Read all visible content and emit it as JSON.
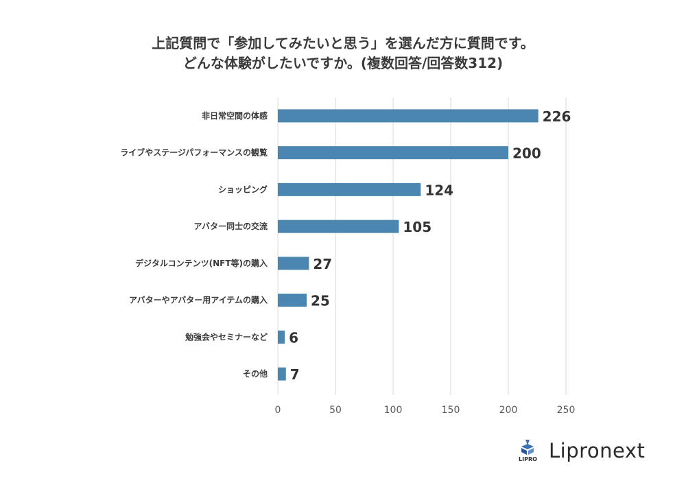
{
  "title_line1": "上記質問で「参加してみたいと思う」を選んだ方に質問です。",
  "title_line2": "どんな体験がしたいですか。(複数回答/回答数312)",
  "brand": {
    "name": "Lipronext",
    "mark_text": "LIPRO"
  },
  "colors": {
    "bar": "#4a86b0",
    "grid": "#d9d9d9",
    "axis_text": "#595959",
    "value_text": "#333333"
  },
  "chart_data": {
    "type": "bar",
    "orientation": "horizontal",
    "categories": [
      "非日常空間の体感",
      "ライブやステージパフォーマンスの観覧",
      "ショッピング",
      "アバター同士の交流",
      "デジタルコンテンツ(NFT等)の購入",
      "アバターやアバター用アイテムの購入",
      "勉強会やセミナーなど",
      "その他"
    ],
    "values": [
      226,
      200,
      124,
      105,
      27,
      25,
      6,
      7
    ],
    "xlim": [
      0,
      250
    ],
    "xticks": [
      0,
      50,
      100,
      150,
      200,
      250
    ],
    "grid": true,
    "data_labels": true
  }
}
